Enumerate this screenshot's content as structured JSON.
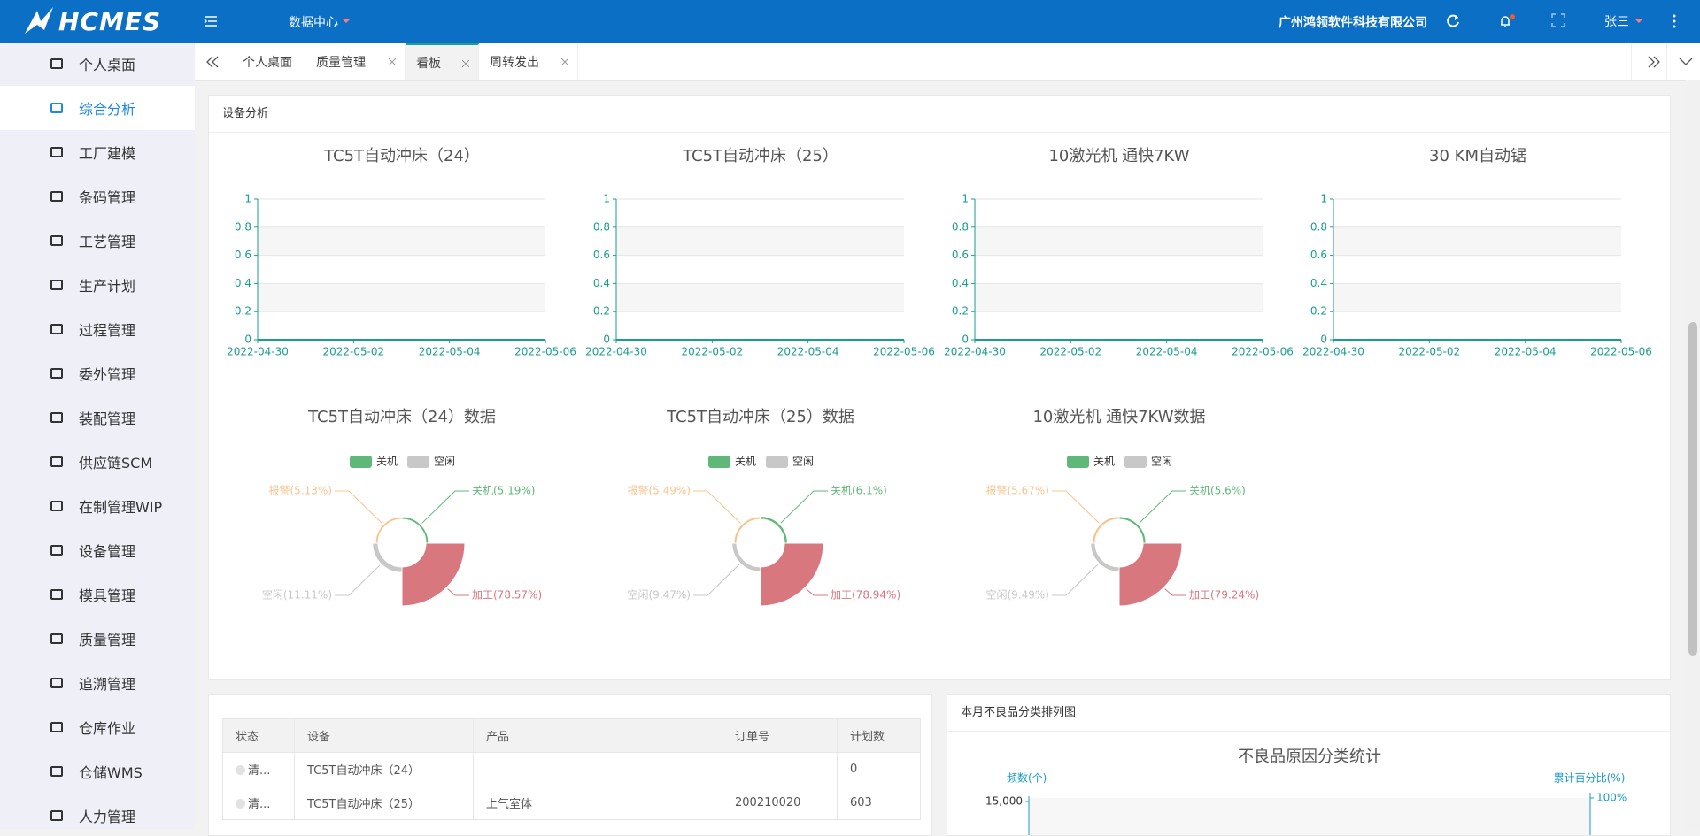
{
  "header": {
    "logo": "HCMES",
    "menu": "数据中心",
    "company": "广州鸿领软件科技有限公司",
    "user": "张三"
  },
  "sidebar": {
    "items": [
      "个人桌面",
      "综合分析",
      "工厂建模",
      "条码管理",
      "工艺管理",
      "生产计划",
      "过程管理",
      "委外管理",
      "装配管理",
      "供应链SCM",
      "在制管理WIP",
      "设备管理",
      "模具管理",
      "质量管理",
      "追溯管理",
      "仓库作业",
      "仓储WMS",
      "人力管理"
    ],
    "active": 1
  },
  "tabs": {
    "items": [
      "个人桌面",
      "质量管理",
      "看板",
      "周转发出"
    ],
    "active": 2
  },
  "equipment_panel": {
    "title": "设备分析",
    "line_axis": {
      "ylim": [
        0,
        1
      ],
      "yticks": [
        0,
        0.2,
        0.4,
        0.6,
        0.8,
        1
      ],
      "xlim": [
        "2022-04-30",
        "2022-05-06"
      ],
      "xticks": [
        "2022-04-30",
        "2022-05-02",
        "2022-05-04",
        "2022-05-06"
      ]
    },
    "line_charts": [
      {
        "title": "TC5T自动冲床（24）"
      },
      {
        "title": "TC5T自动冲床（25）"
      },
      {
        "title": "10激光机  通快7KW"
      },
      {
        "title": "30 KM自动锯"
      }
    ],
    "pie_charts": [
      {
        "title": "TC5T自动冲床（24）数据",
        "legend": [
          "关机",
          "空闲"
        ],
        "slices": [
          {
            "name": "关机",
            "value": 5.19,
            "label": "关机(5.19%)",
            "color": "#5fb878"
          },
          {
            "name": "加工",
            "value": 78.57,
            "label": "加工(78.57%)",
            "color": "#d9777f"
          },
          {
            "name": "空闲",
            "value": 11.11,
            "label": "空闲(11.11%)",
            "color": "#c8c8c8"
          },
          {
            "name": "报警",
            "value": 5.13,
            "label": "报警(5.13%)",
            "color": "#f8c48e"
          }
        ]
      },
      {
        "title": "TC5T自动冲床（25）数据",
        "legend": [
          "关机",
          "空闲"
        ],
        "slices": [
          {
            "name": "关机",
            "value": 6.1,
            "label": "关机(6.1%)",
            "color": "#5fb878"
          },
          {
            "name": "加工",
            "value": 78.94,
            "label": "加工(78.94%)",
            "color": "#d9777f"
          },
          {
            "name": "空闲",
            "value": 9.47,
            "label": "空闲(9.47%)",
            "color": "#c8c8c8"
          },
          {
            "name": "报警",
            "value": 5.49,
            "label": "报警(5.49%)",
            "color": "#f8c48e"
          }
        ]
      },
      {
        "title": "10激光机  通快7KW数据",
        "legend": [
          "关机",
          "空闲"
        ],
        "slices": [
          {
            "name": "关机",
            "value": 5.6,
            "label": "关机(5.6%)",
            "color": "#5fb878"
          },
          {
            "name": "加工",
            "value": 79.24,
            "label": "加工(79.24%)",
            "color": "#d9777f"
          },
          {
            "name": "空闲",
            "value": 9.49,
            "label": "空闲(9.49%)",
            "color": "#c8c8c8"
          },
          {
            "name": "报警",
            "value": 5.67,
            "label": "报警(5.67%)",
            "color": "#f8c48e"
          }
        ]
      }
    ]
  },
  "table": {
    "columns": [
      "状态",
      "设备",
      "产品",
      "订单号",
      "计划数"
    ],
    "rows": [
      [
        "清...",
        "TC5T自动冲床（24）",
        "",
        "",
        "0"
      ],
      [
        "清...",
        "TC5T自动冲床（25）",
        "上气室体",
        "200210020",
        "603"
      ]
    ]
  },
  "pareto": {
    "panel_title": "本月不良品分类排列图",
    "title": "不良品原因分类统计",
    "y_label": "频数(个)",
    "y2_label": "累计百分比(%)",
    "yticks": [
      {
        "value": 15000,
        "label": "15,000"
      }
    ],
    "y2ticks": [
      {
        "value": 100,
        "label": "100%"
      }
    ]
  }
}
